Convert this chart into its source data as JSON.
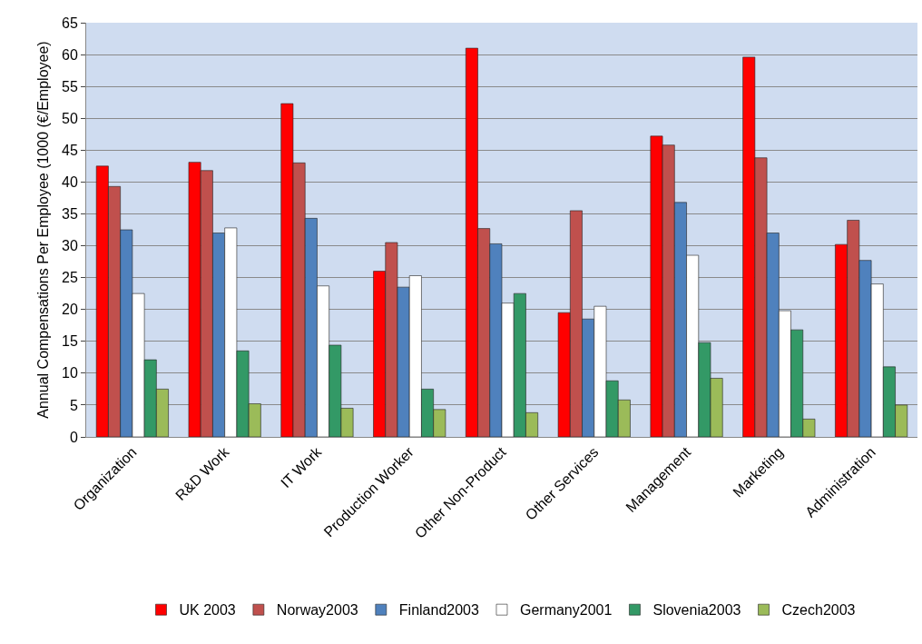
{
  "chart_data": {
    "type": "bar",
    "ylabel": "Annual Compensations Per Employee (1000 (€/Employee)",
    "categories": [
      "Organization",
      "R&D Work",
      "IT Work",
      "Production Worker",
      "Other Non-Product",
      "Other Services",
      "Management",
      "Marketing",
      "Administration"
    ],
    "series": [
      {
        "name": "UK 2003",
        "color": "#ff0000",
        "values": [
          42.5,
          43.1,
          52.3,
          26,
          61,
          19.5,
          47.2,
          59.6,
          30.2
        ]
      },
      {
        "name": "Norway2003",
        "color": "#c0504d",
        "values": [
          39.3,
          41.8,
          43,
          30.5,
          32.7,
          35.5,
          45.8,
          43.8,
          34
        ]
      },
      {
        "name": "Finland2003",
        "color": "#4f81bd",
        "values": [
          32.5,
          32,
          34.3,
          23.5,
          30.3,
          18.5,
          36.8,
          32,
          27.7
        ]
      },
      {
        "name": "Germany2001",
        "color": "#ffffff",
        "values": [
          22.5,
          32.8,
          23.7,
          25.3,
          21,
          20.5,
          28.5,
          19.8,
          24
        ]
      },
      {
        "name": "Slovenia2003",
        "color": "#339966",
        "values": [
          12.1,
          13.5,
          14.4,
          7.5,
          22.5,
          8.8,
          14.8,
          16.8,
          11
        ]
      },
      {
        "name": "Czech2003",
        "color": "#9bbb59",
        "values": [
          7.5,
          5.2,
          4.5,
          4.3,
          3.8,
          5.8,
          9.2,
          2.8,
          5
        ]
      }
    ],
    "ylim": [
      0,
      65
    ],
    "yticks": [
      0,
      5,
      10,
      15,
      20,
      25,
      30,
      35,
      40,
      45,
      50,
      55,
      60,
      65
    ],
    "grid": "y",
    "legend": "bottom"
  }
}
